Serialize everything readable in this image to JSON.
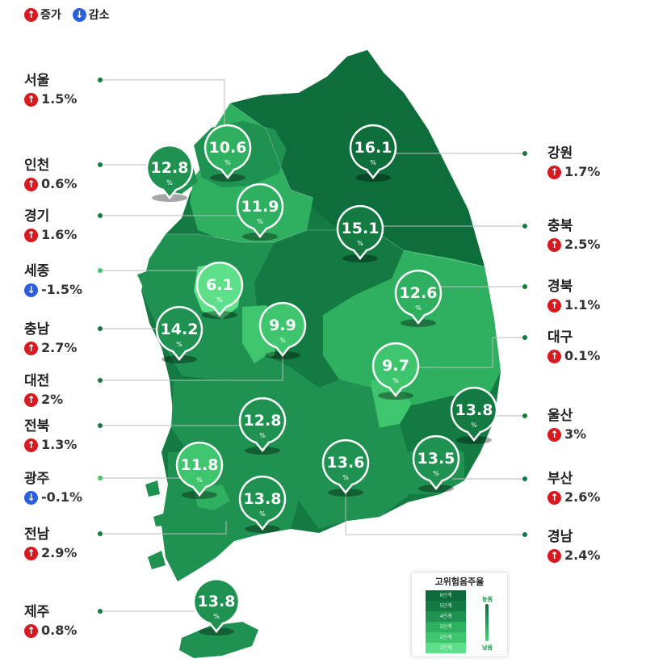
{
  "legend": {
    "increase_label": "증가",
    "decrease_label": "감소"
  },
  "regions": [
    {
      "name": "서울",
      "direction": "up",
      "change": "1.5%",
      "value": "10.6",
      "unit": "%"
    },
    {
      "name": "인천",
      "direction": "up",
      "change": "0.6%",
      "value": "12.8",
      "unit": "%"
    },
    {
      "name": "경기",
      "direction": "up",
      "change": "1.6%",
      "value": "11.9",
      "unit": "%"
    },
    {
      "name": "세종",
      "direction": "down",
      "change": "-1.5%",
      "value": "6.1",
      "unit": "%"
    },
    {
      "name": "충남",
      "direction": "up",
      "change": "2.7%",
      "value": "14.2",
      "unit": "%"
    },
    {
      "name": "대전",
      "direction": "up",
      "change": "2%",
      "value": "9.9",
      "unit": "%"
    },
    {
      "name": "전북",
      "direction": "up",
      "change": "1.3%",
      "value": "12.8",
      "unit": "%"
    },
    {
      "name": "광주",
      "direction": "down",
      "change": "-0.1%",
      "value": "11.8",
      "unit": "%"
    },
    {
      "name": "전남",
      "direction": "up",
      "change": "2.9%",
      "value": "13.8",
      "unit": "%"
    },
    {
      "name": "제주",
      "direction": "up",
      "change": "0.8%",
      "value": "13.8",
      "unit": "%"
    },
    {
      "name": "강원",
      "direction": "up",
      "change": "1.7%",
      "value": "16.1",
      "unit": "%"
    },
    {
      "name": "충북",
      "direction": "up",
      "change": "2.5%",
      "value": "15.1",
      "unit": "%"
    },
    {
      "name": "경북",
      "direction": "up",
      "change": "1.1%",
      "value": "12.6",
      "unit": "%"
    },
    {
      "name": "대구",
      "direction": "up",
      "change": "0.1%",
      "value": "9.7",
      "unit": "%"
    },
    {
      "name": "울산",
      "direction": "up",
      "change": "3%",
      "value": "13.8",
      "unit": "%"
    },
    {
      "name": "부산",
      "direction": "up",
      "change": "2.6%",
      "value": "13.5",
      "unit": "%"
    },
    {
      "name": "경남",
      "direction": "up",
      "change": "2.4%",
      "value": "13.6",
      "unit": "%"
    }
  ],
  "scale_legend": {
    "title": "고위험음주율",
    "steps": [
      "6단계",
      "5단계",
      "4단계",
      "3단계",
      "2단계",
      "1단계"
    ],
    "high_label": "높음",
    "low_label": "낮음"
  },
  "colors": {
    "up": "#d71920",
    "down": "#2a5fe0",
    "darkest": "#0b6b3a",
    "dark": "#137a42",
    "mid": "#1f9150",
    "light": "#2fb060",
    "lighter": "#3ec56d",
    "lightest": "#5ee08a"
  }
}
